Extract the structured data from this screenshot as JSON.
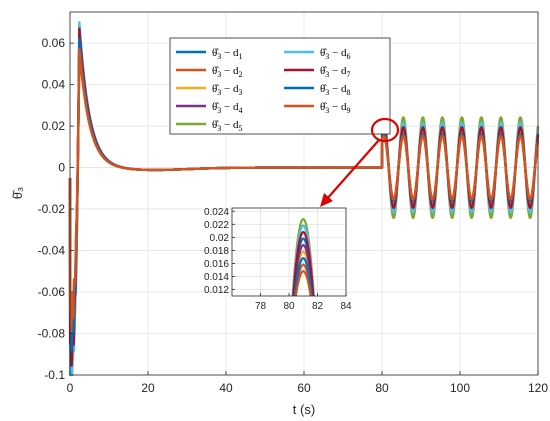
{
  "chart_data": {
    "type": "line",
    "xlabel": "t (s)",
    "ylabel": "θ̂₃",
    "xlim": [
      0,
      120
    ],
    "ylim": [
      -0.1,
      0.075
    ],
    "xticks": [
      0,
      20,
      40,
      60,
      80,
      100,
      120
    ],
    "yticks": [
      -0.1,
      -0.08,
      -0.06,
      -0.04,
      -0.02,
      0,
      0.02,
      0.04,
      0.06
    ],
    "ytick_labels": [
      "-0.1",
      "-0.08",
      "-0.06",
      "-0.04",
      "-0.02",
      "0",
      "0.02",
      "0.04",
      "0.06"
    ],
    "grid": true,
    "legend_position": "top-center",
    "legend_columns": 2,
    "series": [
      {
        "name": "θ̂₃ − d₁",
        "label_base": "θ̂",
        "label_sub1": "3",
        "label_mid": " − d",
        "label_sub2": "1",
        "color": "#0072BD",
        "peak": 0.066,
        "min_early": -0.082,
        "amp_late": 0.02
      },
      {
        "name": "θ̂₃ − d₂",
        "label_base": "θ̂",
        "label_sub1": "3",
        "label_mid": " − d",
        "label_sub2": "2",
        "color": "#D95319",
        "peak": 0.063,
        "min_early": -0.075,
        "amp_late": 0.016
      },
      {
        "name": "θ̂₃ − d₃",
        "label_base": "θ̂",
        "label_sub1": "3",
        "label_mid": " − d",
        "label_sub2": "3",
        "color": "#EDB120",
        "peak": 0.06,
        "min_early": -0.09,
        "amp_late": 0.018
      },
      {
        "name": "θ̂₃ − d₄",
        "label_base": "θ̂",
        "label_sub1": "3",
        "label_mid": " − d",
        "label_sub2": "4",
        "color": "#7E2F8E",
        "peak": 0.064,
        "min_early": -0.085,
        "amp_late": 0.019
      },
      {
        "name": "θ̂₃ − d₅",
        "label_base": "θ̂",
        "label_sub1": "3",
        "label_mid": " − d",
        "label_sub2": "5",
        "color": "#77AC30",
        "peak": 0.068,
        "min_early": -0.092,
        "amp_late": 0.023
      },
      {
        "name": "θ̂₃ − d₆",
        "label_base": "θ̂",
        "label_sub1": "3",
        "label_mid": " − d",
        "label_sub2": "6",
        "color": "#4DBEEE",
        "peak": 0.07,
        "min_early": -0.095,
        "amp_late": 0.022
      },
      {
        "name": "θ̂₃ − d₇",
        "label_base": "θ̂",
        "label_sub1": "3",
        "label_mid": " − d",
        "label_sub2": "7",
        "color": "#A2142F",
        "peak": 0.067,
        "min_early": -0.088,
        "amp_late": 0.021
      },
      {
        "name": "θ̂₃ − d₈",
        "label_base": "θ̂",
        "label_sub1": "3",
        "label_mid": " − d",
        "label_sub2": "8",
        "color": "#0072BD",
        "peak": 0.062,
        "min_early": -0.08,
        "amp_late": 0.017
      },
      {
        "name": "θ̂₃ − d₉",
        "label_base": "θ̂",
        "label_sub1": "3",
        "label_mid": " − d",
        "label_sub2": "9",
        "color": "#D95319",
        "peak": 0.057,
        "min_early": -0.07,
        "amp_late": 0.015
      }
    ],
    "inset": {
      "xlim": [
        76,
        84
      ],
      "ylim": [
        0.011,
        0.0245
      ],
      "xticks": [
        78,
        80,
        82,
        84
      ],
      "yticks": [
        0.012,
        0.014,
        0.016,
        0.018,
        0.02,
        0.022,
        0.024
      ],
      "ytick_labels": [
        "0.012",
        "0.014",
        "0.016",
        "0.018",
        "0.02",
        "0.022",
        "0.024"
      ],
      "focus_x": 80,
      "focus_y": 0.02
    }
  }
}
